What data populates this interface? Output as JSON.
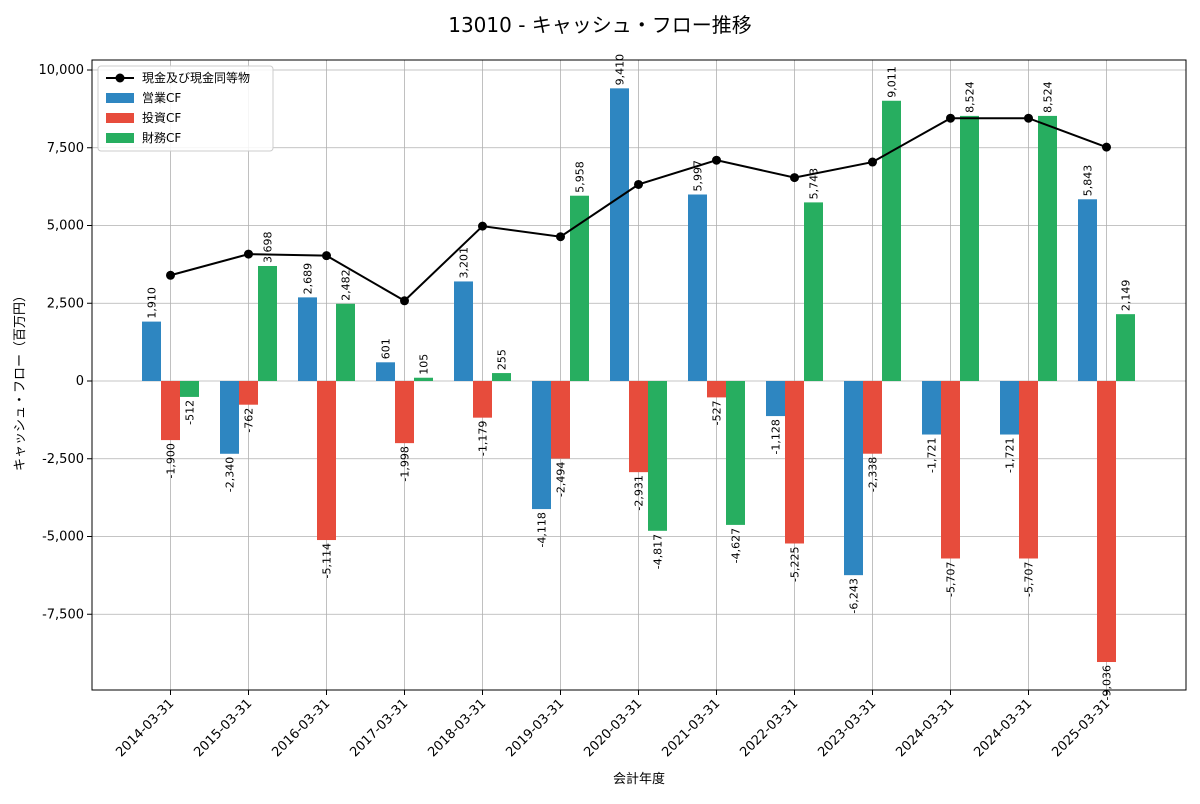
{
  "chart_data": {
    "type": "bar",
    "title": "13010 - キャッシュ・フロー推移",
    "xlabel": "会計年度",
    "ylabel": "キャッシュ・フロー（百万円）",
    "categories": [
      "2014-03-31",
      "2015-03-31",
      "2016-03-31",
      "2017-03-31",
      "2018-03-31",
      "2019-03-31",
      "2020-03-31",
      "2021-03-31",
      "2022-03-31",
      "2023-03-31",
      "2024-03-31",
      "2024-03-31",
      "2025-03-31"
    ],
    "ylim": [
      -10000,
      10000
    ],
    "yticks": [
      -7500,
      -5000,
      -2500,
      0,
      2500,
      5000,
      7500,
      10000
    ],
    "ytick_labels": [
      "-7,500",
      "-5,000",
      "-2,500",
      "0",
      "2,500",
      "5,000",
      "7,500",
      "10,000"
    ],
    "grid": true,
    "legend_position": "top-left",
    "series": [
      {
        "name": "営業CF",
        "color": "#2e86c1",
        "values": [
          1910,
          -2340,
          2689,
          601,
          3201,
          -4118,
          9410,
          5997,
          -1128,
          -6243,
          -1721,
          -1721,
          5843
        ],
        "labels": [
          "1,910",
          "-2,340",
          "2,689",
          "601",
          "3,201",
          "-4,118",
          "9,410",
          "5,997",
          "-1,128",
          "-6,243",
          "-1,721",
          "-1,721",
          "5,843"
        ]
      },
      {
        "name": "投資CF",
        "color": "#e74c3c",
        "values": [
          -1900,
          -762,
          -5114,
          -1998,
          -1179,
          -2494,
          -2931,
          -527,
          -5225,
          -2338,
          -5707,
          -5707,
          -9036
        ],
        "labels": [
          "-1,900",
          "-762",
          "-5,114",
          "-1,998",
          "-1,179",
          "-2,494",
          "-2,931",
          "-527",
          "-5,225",
          "-2,338",
          "-5,707",
          "-5,707",
          "-9,036"
        ]
      },
      {
        "name": "財務CF",
        "color": "#27ae60",
        "values": [
          -512,
          3698,
          2482,
          105,
          255,
          5958,
          -4817,
          -4627,
          5743,
          9011,
          8524,
          8524,
          2149
        ],
        "labels": [
          "-512",
          "3,698",
          "2,482",
          "105",
          "255",
          "5,958",
          "-4,817",
          "-4,627",
          "5,743",
          "9,011",
          "8,524",
          "8,524",
          "2,149"
        ]
      }
    ],
    "line": {
      "name": "現金及び現金同等物",
      "color": "#000000",
      "values": [
        3400,
        4080,
        4030,
        2580,
        4980,
        4640,
        6320,
        7100,
        6540,
        7040,
        8450,
        8450,
        7520
      ]
    }
  }
}
